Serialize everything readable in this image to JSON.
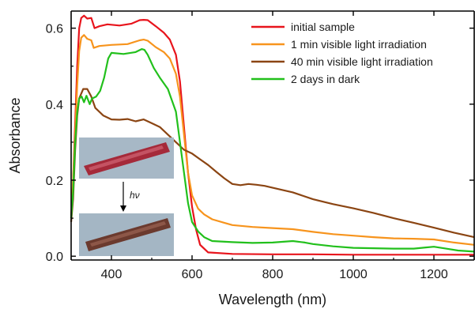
{
  "chart_data": {
    "type": "line",
    "title": "",
    "xlabel": "Wavelength (nm)",
    "ylabel": "Absorbance",
    "xlim": [
      300,
      1300
    ],
    "ylim": [
      -0.01,
      0.645
    ],
    "xticks": [
      400,
      600,
      800,
      1000,
      1200
    ],
    "yticks": [
      0.0,
      0.2,
      0.4,
      0.6
    ],
    "ytick_labels": [
      "0.0",
      "0.2",
      "0.4",
      "0.6"
    ],
    "grid": false,
    "legend_position": "top-right",
    "series": [
      {
        "name": "initial sample",
        "color": "#e8141c",
        "points": [
          [
            300,
            0.1
          ],
          [
            305,
            0.2
          ],
          [
            310,
            0.35
          ],
          [
            315,
            0.5
          ],
          [
            320,
            0.6
          ],
          [
            325,
            0.627
          ],
          [
            332,
            0.633
          ],
          [
            340,
            0.625
          ],
          [
            350,
            0.627
          ],
          [
            358,
            0.6
          ],
          [
            370,
            0.605
          ],
          [
            390,
            0.61
          ],
          [
            420,
            0.607
          ],
          [
            450,
            0.612
          ],
          [
            470,
            0.621
          ],
          [
            480,
            0.622
          ],
          [
            490,
            0.621
          ],
          [
            510,
            0.605
          ],
          [
            530,
            0.588
          ],
          [
            545,
            0.57
          ],
          [
            560,
            0.53
          ],
          [
            570,
            0.46
          ],
          [
            580,
            0.34
          ],
          [
            590,
            0.22
          ],
          [
            600,
            0.13
          ],
          [
            610,
            0.07
          ],
          [
            620,
            0.03
          ],
          [
            640,
            0.01
          ],
          [
            700,
            0.006
          ],
          [
            800,
            0.005
          ],
          [
            900,
            0.005
          ],
          [
            1000,
            0.004
          ],
          [
            1100,
            0.004
          ],
          [
            1200,
            0.004
          ],
          [
            1300,
            0.004
          ]
        ]
      },
      {
        "name": "1 min visible light irradiation",
        "color": "#f7941d",
        "points": [
          [
            300,
            0.1
          ],
          [
            305,
            0.2
          ],
          [
            310,
            0.32
          ],
          [
            315,
            0.45
          ],
          [
            320,
            0.54
          ],
          [
            325,
            0.575
          ],
          [
            332,
            0.582
          ],
          [
            340,
            0.572
          ],
          [
            350,
            0.568
          ],
          [
            356,
            0.548
          ],
          [
            370,
            0.553
          ],
          [
            400,
            0.556
          ],
          [
            440,
            0.558
          ],
          [
            470,
            0.568
          ],
          [
            480,
            0.57
          ],
          [
            490,
            0.567
          ],
          [
            510,
            0.55
          ],
          [
            530,
            0.537
          ],
          [
            545,
            0.52
          ],
          [
            560,
            0.48
          ],
          [
            570,
            0.42
          ],
          [
            580,
            0.32
          ],
          [
            590,
            0.22
          ],
          [
            600,
            0.16
          ],
          [
            615,
            0.125
          ],
          [
            630,
            0.11
          ],
          [
            650,
            0.097
          ],
          [
            680,
            0.088
          ],
          [
            700,
            0.082
          ],
          [
            750,
            0.077
          ],
          [
            800,
            0.074
          ],
          [
            850,
            0.071
          ],
          [
            900,
            0.064
          ],
          [
            950,
            0.058
          ],
          [
            1000,
            0.054
          ],
          [
            1050,
            0.05
          ],
          [
            1100,
            0.047
          ],
          [
            1150,
            0.046
          ],
          [
            1200,
            0.044
          ],
          [
            1250,
            0.036
          ],
          [
            1300,
            0.03
          ]
        ]
      },
      {
        "name": "40 min visible light irradiation",
        "color": "#8b4513",
        "points": [
          [
            300,
            0.09
          ],
          [
            305,
            0.15
          ],
          [
            310,
            0.28
          ],
          [
            315,
            0.37
          ],
          [
            320,
            0.415
          ],
          [
            330,
            0.44
          ],
          [
            340,
            0.44
          ],
          [
            350,
            0.42
          ],
          [
            360,
            0.39
          ],
          [
            380,
            0.37
          ],
          [
            400,
            0.36
          ],
          [
            420,
            0.359
          ],
          [
            440,
            0.361
          ],
          [
            460,
            0.355
          ],
          [
            480,
            0.36
          ],
          [
            500,
            0.35
          ],
          [
            520,
            0.34
          ],
          [
            540,
            0.32
          ],
          [
            560,
            0.3
          ],
          [
            580,
            0.28
          ],
          [
            600,
            0.27
          ],
          [
            620,
            0.255
          ],
          [
            640,
            0.24
          ],
          [
            660,
            0.222
          ],
          [
            680,
            0.205
          ],
          [
            700,
            0.19
          ],
          [
            720,
            0.187
          ],
          [
            740,
            0.19
          ],
          [
            760,
            0.188
          ],
          [
            780,
            0.185
          ],
          [
            800,
            0.18
          ],
          [
            850,
            0.168
          ],
          [
            900,
            0.15
          ],
          [
            950,
            0.137
          ],
          [
            1000,
            0.126
          ],
          [
            1050,
            0.114
          ],
          [
            1100,
            0.1
          ],
          [
            1150,
            0.088
          ],
          [
            1200,
            0.075
          ],
          [
            1250,
            0.062
          ],
          [
            1300,
            0.05
          ]
        ]
      },
      {
        "name": "2 days in dark",
        "color": "#22c01c",
        "points": [
          [
            300,
            0.1
          ],
          [
            305,
            0.17
          ],
          [
            310,
            0.3
          ],
          [
            315,
            0.38
          ],
          [
            320,
            0.415
          ],
          [
            326,
            0.42
          ],
          [
            332,
            0.405
          ],
          [
            338,
            0.422
          ],
          [
            346,
            0.4
          ],
          [
            352,
            0.415
          ],
          [
            362,
            0.42
          ],
          [
            372,
            0.435
          ],
          [
            382,
            0.47
          ],
          [
            392,
            0.52
          ],
          [
            400,
            0.535
          ],
          [
            430,
            0.532
          ],
          [
            460,
            0.537
          ],
          [
            475,
            0.545
          ],
          [
            482,
            0.543
          ],
          [
            490,
            0.53
          ],
          [
            505,
            0.495
          ],
          [
            520,
            0.47
          ],
          [
            540,
            0.44
          ],
          [
            560,
            0.38
          ],
          [
            570,
            0.3
          ],
          [
            580,
            0.22
          ],
          [
            590,
            0.14
          ],
          [
            600,
            0.09
          ],
          [
            615,
            0.065
          ],
          [
            630,
            0.05
          ],
          [
            650,
            0.04
          ],
          [
            700,
            0.037
          ],
          [
            750,
            0.035
          ],
          [
            800,
            0.036
          ],
          [
            850,
            0.04
          ],
          [
            880,
            0.036
          ],
          [
            900,
            0.032
          ],
          [
            950,
            0.026
          ],
          [
            1000,
            0.022
          ],
          [
            1100,
            0.02
          ],
          [
            1150,
            0.02
          ],
          [
            1180,
            0.023
          ],
          [
            1200,
            0.025
          ],
          [
            1230,
            0.02
          ],
          [
            1260,
            0.015
          ],
          [
            1300,
            0.012
          ]
        ]
      }
    ]
  },
  "inset": {
    "label": "hν",
    "before_color": "#a52a3a",
    "after_color": "#6b3a2e",
    "background_color": "#9fb3c2"
  },
  "colors": {
    "axis": "#000000",
    "background": "#ffffff"
  }
}
